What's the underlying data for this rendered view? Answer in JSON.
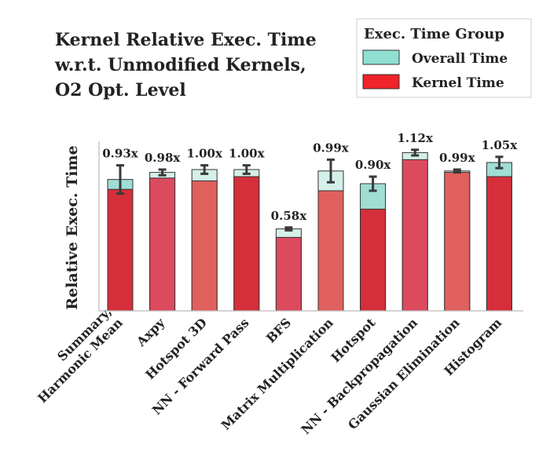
{
  "chart_data": {
    "type": "bar",
    "title_lines": [
      "Kernel Relative Exec. Time",
      "w.r.t. Unmodified Kernels,",
      "O2 Opt. Level"
    ],
    "xlabel": "",
    "ylabel": "Relative Exec. Time",
    "ylim": [
      0,
      1.2
    ],
    "grid": false,
    "legend_position": "top-right",
    "legend": {
      "title": "Exec. Time Group",
      "entries": [
        {
          "label": "Overall Time",
          "color": "#8fe0d2"
        },
        {
          "label": "Kernel Time",
          "color": "#f0222a"
        }
      ]
    },
    "categories": [
      [
        "Summary,",
        "Harmonic Mean"
      ],
      [
        "Axpy"
      ],
      [
        "Hotspot 3D"
      ],
      [
        "NN - Forward Pass"
      ],
      [
        "BFS"
      ],
      [
        "Matrix Multiplication"
      ],
      [
        "Hotspot"
      ],
      [
        "NN - Backpropagation"
      ],
      [
        "Gaussian Elimination"
      ],
      [
        "Histogram"
      ]
    ],
    "series": [
      {
        "name": "Overall Time",
        "values": [
          0.93,
          0.98,
          1.0,
          1.0,
          0.58,
          0.99,
          0.9,
          1.12,
          0.99,
          1.05
        ],
        "errors": [
          0.1,
          0.02,
          0.03,
          0.03,
          0.01,
          0.08,
          0.05,
          0.02,
          0.01,
          0.04
        ]
      },
      {
        "name": "Kernel Time",
        "values": [
          0.86,
          0.94,
          0.92,
          0.95,
          0.52,
          0.85,
          0.72,
          1.07,
          0.98,
          0.95
        ]
      }
    ],
    "data_labels": [
      "0.93x",
      "0.98x",
      "1.00x",
      "1.00x",
      "0.58x",
      "0.99x",
      "0.90x",
      "1.12x",
      "0.99x",
      "1.05x"
    ],
    "bar_colors": {
      "kernel": [
        "#d42f3a",
        "#dc4a5e",
        "#e0605e",
        "#d42f3a",
        "#dc4a5e",
        "#e0605e",
        "#d42f3a",
        "#dc4a5e",
        "#e0605e",
        "#d42f3a"
      ],
      "overall": [
        "#a0ddd4",
        "#d5efe9",
        "#d5efe9",
        "#d5efe9",
        "#d5efe9",
        "#d5efe9",
        "#a0ddd4",
        "#d5efe9",
        "#d5efe9",
        "#a0ddd4"
      ]
    }
  }
}
